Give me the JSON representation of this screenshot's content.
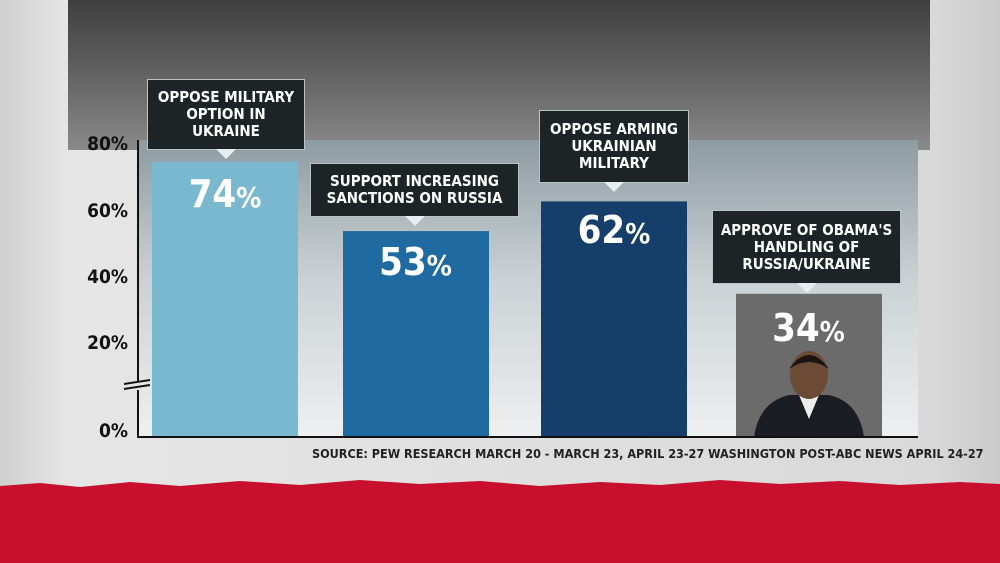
{
  "chart_data": {
    "type": "bar",
    "categories": [
      "OPPOSE MILITARY OPTION IN UKRAINE",
      "SUPPORT INCREASING SANCTIONS ON RUSSIA",
      "OPPOSE ARMING UKRAINIAN MILITARY",
      "APPROVE OF OBAMA'S HANDLING OF RUSSIA/UKRAINE"
    ],
    "values": [
      74,
      53,
      62,
      34
    ],
    "value_labels": [
      "74",
      "53",
      "62",
      "34"
    ],
    "percent_sign": "%",
    "colors": [
      "#7ab8d0",
      "#1f6aa0",
      "#163e6b",
      "#6b6b6b"
    ],
    "y_ticks": [
      "80%",
      "60%",
      "40%",
      "20%",
      "0%"
    ],
    "y_axis_break": "between 0% and 20%",
    "ylim": [
      0,
      80
    ],
    "grid": false,
    "source": "SOURCE: PEW RESEARCH MARCH 20 - MARCH 23, APRIL 23-27 WASHINGTON POST-ABC NEWS  APRIL 24-27"
  },
  "theme": {
    "accent_red": "#c8102e",
    "callout_bg": "#1d2426"
  }
}
